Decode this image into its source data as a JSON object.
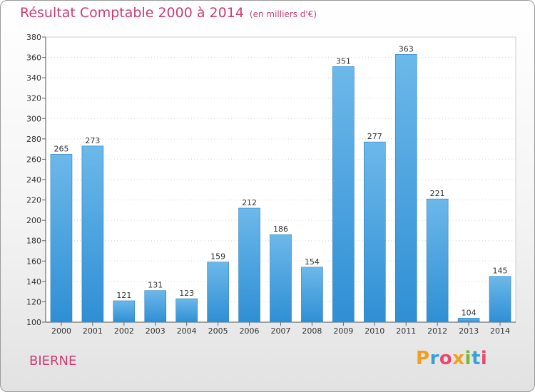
{
  "header": {
    "title": "Résultat Comptable 2000 à 2014",
    "subtitle": "(en milliers d'€)"
  },
  "commune": "BIERNE",
  "logo": {
    "text": "Proxiti",
    "colors": [
      "#f0a020",
      "#3aa0d8",
      "#e84a6c",
      "#f0a020",
      "#7ab830",
      "#3aa0d8",
      "#e84a6c"
    ]
  },
  "colors": {
    "bar": "#2f8fd4",
    "bar_light": "#6cb8ea",
    "accent": "#cc3c73"
  },
  "chart_data": {
    "type": "bar",
    "title": "Résultat Comptable 2000 à 2014",
    "subtitle": "(en milliers d'€)",
    "xlabel": "",
    "ylabel": "",
    "categories": [
      "2000",
      "2001",
      "2002",
      "2003",
      "2004",
      "2005",
      "2006",
      "2007",
      "2008",
      "2009",
      "2010",
      "2011",
      "2012",
      "2013",
      "2014"
    ],
    "values": [
      265,
      273,
      121,
      131,
      123,
      159,
      212,
      186,
      154,
      351,
      277,
      363,
      221,
      104,
      145
    ],
    "ylim": [
      100,
      380
    ],
    "yticks": [
      100,
      120,
      140,
      160,
      180,
      200,
      220,
      240,
      260,
      280,
      300,
      320,
      340,
      360,
      380
    ],
    "grid": true,
    "legend": "none"
  }
}
